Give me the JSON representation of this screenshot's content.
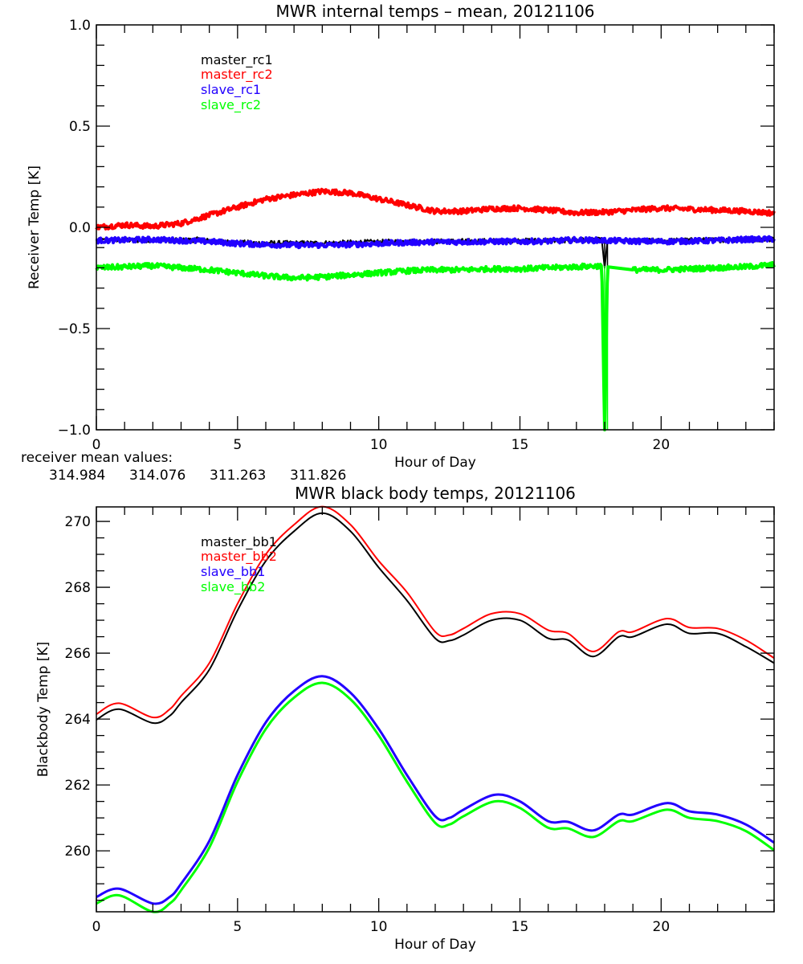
{
  "colors": {
    "black": "#000000",
    "red": "#ff0000",
    "blue": "#2200ff",
    "green": "#00ff00"
  },
  "chart_data": [
    {
      "type": "line",
      "title": "MWR internal temps – mean, 20121106",
      "xlabel": "Hour of Day",
      "ylabel": "Receiver Temp [K]",
      "xlim": [
        0,
        24
      ],
      "ylim": [
        -1.0,
        1.0
      ],
      "xticks": [
        0,
        5,
        10,
        15,
        20
      ],
      "xtick_labels": [
        "0",
        "5",
        "10",
        "15",
        "20"
      ],
      "yticks": [
        -1.0,
        -0.5,
        0.0,
        0.5,
        1.0
      ],
      "ytick_labels": [
        "−1.0",
        "−0.5",
        "0.0",
        "0.5",
        "1.0"
      ],
      "grid": false,
      "legend_position": "top-left",
      "series": [
        {
          "name": "master_rc1",
          "color": "#000000",
          "x": [
            0,
            1,
            2,
            3,
            3.7,
            4,
            5,
            6,
            7,
            8,
            9,
            10,
            11,
            12,
            13,
            14,
            15,
            16,
            17,
            17.9,
            18,
            18.1,
            19,
            20,
            21,
            22,
            23,
            24
          ],
          "values": [
            -0.065,
            -0.065,
            -0.063,
            -0.065,
            -0.06,
            -0.068,
            -0.075,
            -0.078,
            -0.078,
            -0.078,
            -0.075,
            -0.072,
            -0.07,
            -0.07,
            -0.068,
            -0.067,
            -0.066,
            -0.065,
            -0.063,
            -0.063,
            -0.2,
            -0.065,
            -0.066,
            -0.066,
            -0.064,
            -0.063,
            -0.06,
            -0.058
          ]
        },
        {
          "name": "master_rc2",
          "color": "#ff0000",
          "x": [
            0,
            1,
            2,
            3,
            4,
            5,
            6,
            7,
            8,
            9,
            10,
            11,
            12,
            13,
            14,
            15,
            16,
            17,
            18,
            19,
            20,
            21,
            22,
            23,
            24
          ],
          "values": [
            0.0,
            0.012,
            0.005,
            0.02,
            0.06,
            0.1,
            0.14,
            0.16,
            0.178,
            0.17,
            0.14,
            0.11,
            0.08,
            0.08,
            0.092,
            0.095,
            0.085,
            0.072,
            0.075,
            0.085,
            0.095,
            0.09,
            0.085,
            0.08,
            0.07
          ]
        },
        {
          "name": "slave_rc1",
          "color": "#2200ff",
          "x": [
            0,
            1,
            2,
            3,
            4,
            5,
            6,
            7,
            8,
            9,
            10,
            11,
            12,
            13,
            14,
            15,
            16,
            17,
            18,
            19,
            20,
            21,
            22,
            23,
            24
          ],
          "values": [
            -0.065,
            -0.063,
            -0.06,
            -0.065,
            -0.07,
            -0.08,
            -0.085,
            -0.088,
            -0.088,
            -0.085,
            -0.08,
            -0.075,
            -0.072,
            -0.072,
            -0.07,
            -0.07,
            -0.068,
            -0.062,
            -0.065,
            -0.068,
            -0.07,
            -0.068,
            -0.065,
            -0.06,
            -0.058
          ]
        },
        {
          "name": "slave_rc2",
          "color": "#00ff00",
          "x": [
            0,
            1,
            2,
            3,
            4,
            5,
            6,
            7,
            8,
            9,
            10,
            11,
            12,
            13,
            14,
            15,
            16,
            17,
            17.9,
            18,
            18.1,
            19,
            20,
            21,
            22,
            23,
            24
          ],
          "values": [
            -0.2,
            -0.195,
            -0.19,
            -0.2,
            -0.21,
            -0.225,
            -0.24,
            -0.25,
            -0.245,
            -0.235,
            -0.225,
            -0.215,
            -0.21,
            -0.21,
            -0.205,
            -0.205,
            -0.2,
            -0.195,
            -0.19,
            -1.0,
            -0.195,
            -0.21,
            -0.21,
            -0.205,
            -0.2,
            -0.195,
            -0.185
          ]
        }
      ]
    },
    {
      "type": "line",
      "title": "MWR black body temps, 20121106",
      "xlabel": "Hour of Day",
      "ylabel": "Blackbody Temp [K]",
      "xlim": [
        0,
        24
      ],
      "ylim": [
        258.15,
        270.44
      ],
      "xticks": [
        0,
        5,
        10,
        15,
        20
      ],
      "xtick_labels": [
        "0",
        "5",
        "10",
        "15",
        "20"
      ],
      "yticks": [
        260,
        262,
        264,
        266,
        268,
        270
      ],
      "ytick_labels": [
        "260",
        "262",
        "264",
        "266",
        "268",
        "270"
      ],
      "grid": false,
      "legend_position": "top-left",
      "series": [
        {
          "name": "master_bb1",
          "color": "#000000",
          "x": [
            0,
            0.8,
            2,
            2.6,
            3,
            4,
            5,
            6,
            7,
            8,
            9,
            10,
            11,
            12,
            12.5,
            13,
            14,
            15,
            16,
            16.7,
            17.6,
            18.5,
            19,
            20.2,
            21,
            22,
            23,
            24
          ],
          "values": [
            263.98,
            264.3,
            263.88,
            264.1,
            264.5,
            265.5,
            267.3,
            268.8,
            269.7,
            270.25,
            269.7,
            268.6,
            267.6,
            266.45,
            266.38,
            266.55,
            267.0,
            267.0,
            266.45,
            266.4,
            265.9,
            266.5,
            266.5,
            266.88,
            266.6,
            266.6,
            266.2,
            265.7
          ]
        },
        {
          "name": "master_bb2",
          "color": "#ff0000",
          "x": [
            0,
            0.8,
            2,
            2.6,
            3,
            4,
            5,
            6,
            7,
            8,
            9,
            10,
            11,
            12,
            12.5,
            13,
            14,
            15,
            16,
            16.7,
            17.6,
            18.5,
            19,
            20.2,
            21,
            22,
            23,
            24
          ],
          "values": [
            264.15,
            264.48,
            264.05,
            264.3,
            264.7,
            265.7,
            267.5,
            269.0,
            269.9,
            270.45,
            269.9,
            268.8,
            267.85,
            266.65,
            266.55,
            266.75,
            267.2,
            267.2,
            266.7,
            266.6,
            266.05,
            266.65,
            266.65,
            267.05,
            266.78,
            266.75,
            266.4,
            265.85
          ]
        },
        {
          "name": "slave_bb1",
          "color": "#2200ff",
          "x": [
            0,
            0.8,
            2,
            2.6,
            3,
            4,
            5,
            6,
            7,
            8,
            9,
            10,
            11,
            12,
            12.5,
            13,
            14.1,
            15,
            16,
            16.7,
            17.6,
            18.5,
            19,
            20.2,
            21,
            22,
            23,
            24
          ],
          "values": [
            258.6,
            258.85,
            258.4,
            258.6,
            259.0,
            260.3,
            262.3,
            263.9,
            264.85,
            265.3,
            264.8,
            263.7,
            262.3,
            261.05,
            261.0,
            261.25,
            261.7,
            261.5,
            260.9,
            260.88,
            260.62,
            261.1,
            261.1,
            261.45,
            261.2,
            261.1,
            260.8,
            260.25
          ]
        },
        {
          "name": "slave_bb2",
          "color": "#00ff00",
          "x": [
            0,
            0.8,
            2,
            2.6,
            3,
            4,
            5,
            6,
            7,
            8,
            9,
            10,
            11,
            12,
            12.5,
            13,
            14.1,
            15,
            16,
            16.7,
            17.6,
            18.5,
            19,
            20.2,
            21,
            22,
            23,
            24
          ],
          "values": [
            258.4,
            258.65,
            258.15,
            258.4,
            258.8,
            260.1,
            262.1,
            263.7,
            264.65,
            265.1,
            264.6,
            263.5,
            262.1,
            260.85,
            260.8,
            261.05,
            261.5,
            261.3,
            260.7,
            260.68,
            260.42,
            260.9,
            260.9,
            261.25,
            261.0,
            260.9,
            260.6,
            260.02
          ]
        }
      ]
    }
  ],
  "receiver_mean": {
    "label": "receiver mean values:",
    "values": [
      {
        "text": "314.984",
        "color": "#000000"
      },
      {
        "text": "314.076",
        "color": "#ff0000"
      },
      {
        "text": "311.263",
        "color": "#2200ff"
      },
      {
        "text": "311.826",
        "color": "#00ff00"
      }
    ]
  }
}
